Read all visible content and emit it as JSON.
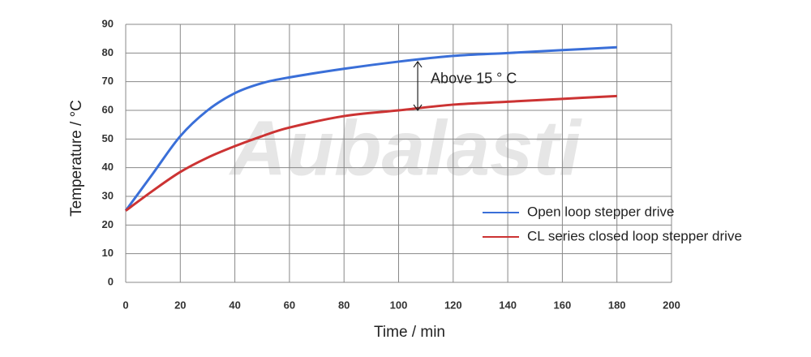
{
  "chart_data": {
    "type": "line",
    "x_label": "Time / min",
    "y_label": "Temperature / °C",
    "watermark": "Aubalasti",
    "x": [
      0,
      10,
      20,
      30,
      40,
      50,
      60,
      80,
      100,
      120,
      140,
      160,
      180
    ],
    "series": [
      {
        "name": "Open loop stepper drive",
        "color": "#3a6fd8",
        "values": [
          25,
          38,
          51,
          60,
          66,
          69.5,
          71.5,
          74.5,
          77,
          79,
          80,
          81,
          82
        ]
      },
      {
        "name": "CL series closed loop stepper drive",
        "color": "#cc3333",
        "values": [
          25,
          32,
          38.5,
          43.5,
          47.5,
          51,
          54,
          58,
          60,
          62,
          63,
          64,
          65
        ]
      }
    ],
    "annotation": {
      "text": "Above 15 ° C",
      "x": 107,
      "from": 60,
      "to": 77
    },
    "xlim": [
      0,
      200
    ],
    "xticks": [
      0,
      20,
      40,
      60,
      80,
      100,
      120,
      140,
      160,
      180,
      200
    ],
    "ylim": [
      0,
      90
    ],
    "yticks": [
      0,
      10,
      20,
      30,
      40,
      50,
      60,
      70,
      80,
      90
    ],
    "grid": true,
    "legend": "right"
  }
}
